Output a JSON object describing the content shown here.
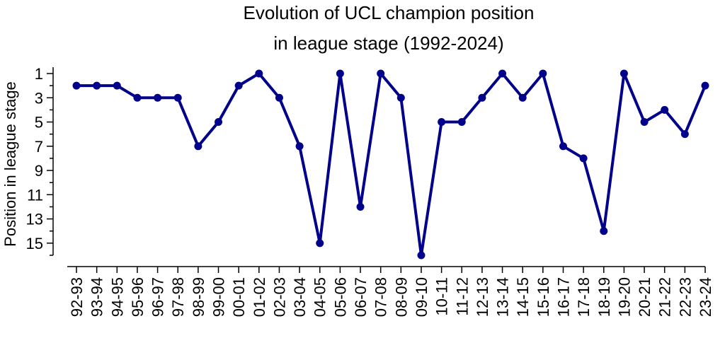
{
  "chart_data": {
    "type": "line",
    "title": [
      "Evolution of UCL champion position",
      "in league stage (1992-2024)"
    ],
    "xlabel": "",
    "ylabel": "Position in league stage",
    "categories": [
      "92-93",
      "93-94",
      "94-95",
      "95-96",
      "96-97",
      "97-98",
      "98-99",
      "99-00",
      "00-01",
      "01-02",
      "02-03",
      "03-04",
      "04-05",
      "05-06",
      "06-07",
      "07-08",
      "08-09",
      "09-10",
      "10-11",
      "11-12",
      "12-13",
      "13-14",
      "14-15",
      "15-16",
      "16-17",
      "17-18",
      "18-19",
      "19-20",
      "20-21",
      "21-22",
      "22-23",
      "23-24"
    ],
    "values": [
      2,
      2,
      2,
      3,
      3,
      3,
      7,
      5,
      2,
      1,
      3,
      7,
      15,
      1,
      12,
      1,
      3,
      16,
      5,
      5,
      3,
      1,
      3,
      1,
      7,
      8,
      14,
      1,
      5,
      4,
      6,
      2
    ],
    "ylim": [
      1,
      16
    ],
    "y_inverted": true,
    "yticks": [
      1,
      3,
      5,
      7,
      9,
      11,
      13,
      15
    ],
    "grid": false,
    "line_color": "#00008B"
  }
}
